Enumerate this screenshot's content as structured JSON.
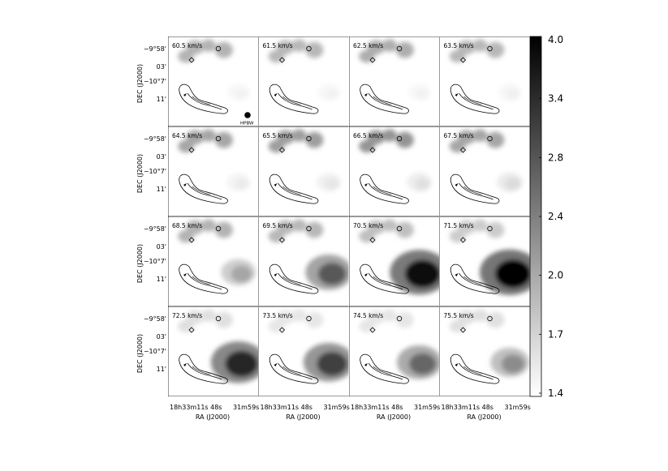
{
  "chart_data": {
    "type": "heatmap",
    "title": "",
    "xlabel": "RA (J2000)",
    "ylabel": "DEC (J2000)",
    "x_tick_labels": [
      "18h33m11s 48s",
      "31m59s"
    ],
    "y_tick_labels": [
      "−9°58'",
      "03'",
      "−10°7'",
      "11'"
    ],
    "beam_label": "HPBW",
    "colorbar": {
      "ticks": [
        "4.0",
        "3.4",
        "2.8",
        "2.4",
        "2.0",
        "1.7",
        "1.4"
      ],
      "range": [
        1.4,
        4.0
      ],
      "colormap": "white-to-black"
    },
    "channels": [
      {
        "velocity": "60.5 km/s",
        "east_peak": 0.05,
        "north_level": 0.3
      },
      {
        "velocity": "61.5 km/s",
        "east_peak": 0.05,
        "north_level": 0.28
      },
      {
        "velocity": "62.5 km/s",
        "east_peak": 0.05,
        "north_level": 0.32
      },
      {
        "velocity": "63.5 km/s",
        "east_peak": 0.06,
        "north_level": 0.28
      },
      {
        "velocity": "64.5 km/s",
        "east_peak": 0.08,
        "north_level": 0.35
      },
      {
        "velocity": "65.5 km/s",
        "east_peak": 0.1,
        "north_level": 0.38
      },
      {
        "velocity": "66.5 km/s",
        "east_peak": 0.12,
        "north_level": 0.42
      },
      {
        "velocity": "67.5 km/s",
        "east_peak": 0.14,
        "north_level": 0.35
      },
      {
        "velocity": "68.5 km/s",
        "east_peak": 0.35,
        "north_level": 0.3
      },
      {
        "velocity": "69.5 km/s",
        "east_peak": 0.65,
        "north_level": 0.28
      },
      {
        "velocity": "70.5 km/s",
        "east_peak": 0.95,
        "north_level": 0.25
      },
      {
        "velocity": "71.5 km/s",
        "east_peak": 0.98,
        "north_level": 0.2
      },
      {
        "velocity": "72.5 km/s",
        "east_peak": 0.85,
        "north_level": 0.12
      },
      {
        "velocity": "73.5 km/s",
        "east_peak": 0.75,
        "north_level": 0.1
      },
      {
        "velocity": "74.5 km/s",
        "east_peak": 0.6,
        "north_level": 0.1
      },
      {
        "velocity": "75.5 km/s",
        "east_peak": 0.45,
        "north_level": 0.12
      }
    ]
  }
}
